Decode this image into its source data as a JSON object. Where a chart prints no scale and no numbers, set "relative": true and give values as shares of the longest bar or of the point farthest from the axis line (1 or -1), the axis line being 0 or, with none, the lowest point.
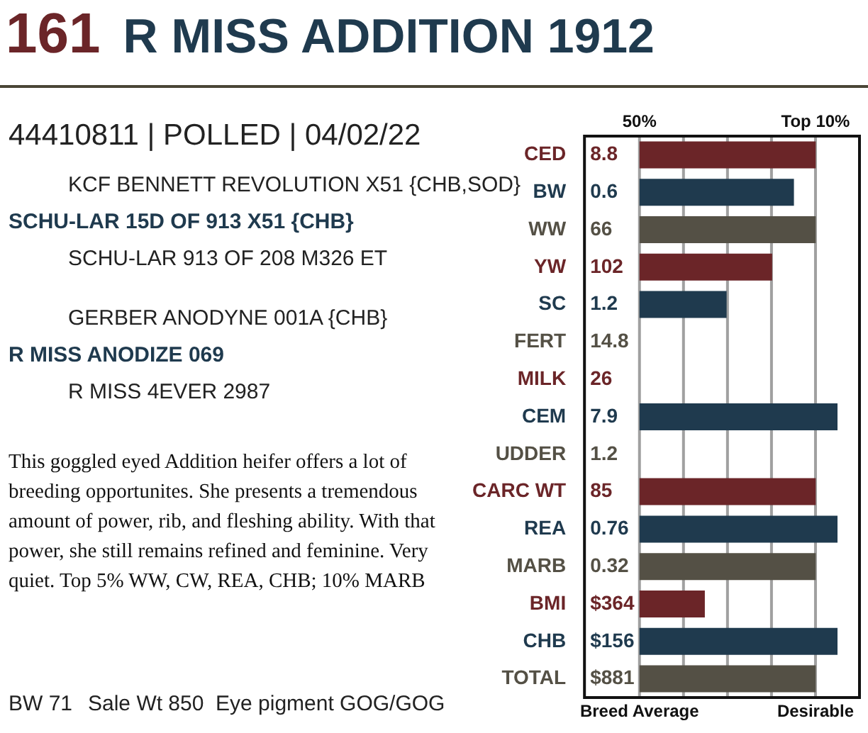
{
  "chart_data": {
    "type": "bar",
    "orientation": "horizontal",
    "relative": true,
    "title": "161",
    "subtitle": "R MISS ADDITION 1912",
    "categories": [
      "CED",
      "BW",
      "WW",
      "YW",
      "SC",
      "FERT",
      "MILK",
      "CEM",
      "UDDER",
      "CARC WT",
      "REA",
      "MARB",
      "BMI",
      "CHB",
      "TOTAL"
    ],
    "values": [
      0.89,
      0.78,
      0.89,
      0.67,
      0.44,
      null,
      null,
      1,
      null,
      0.89,
      1,
      0.89,
      0.33,
      1,
      0.89
    ],
    "colors": [
      "#6b2528",
      "#1f3a4e",
      "#545045",
      "#6b2528",
      "#1f3a4e",
      "#545045",
      "#6b2528",
      "#1f3a4e",
      "#545045",
      "#6b2528",
      "#1f3a4e",
      "#545045",
      "#6b2528",
      "#1f3a4e",
      "#545045"
    ],
    "grid": "x",
    "legend": false,
    "annotations": [
      "44410811 | POLLED | 04/02/22",
      "KCF BENNETT REVOLUTION X51 {CHB,SOD}",
      "SCHU-LAR 15D OF 913 X51 {CHB}",
      "SCHU-LAR 913 OF 208 M326 ET",
      "GERBER ANODYNE 001A {CHB}",
      "R MISS ANODIZE 069",
      "R MISS 4EVER 2987",
      "This goggled eyed Addition heifer offers a lot of breeding opportunites. She presents a tremendous amount of power, rib, and fleshing ability. With that power, she still remains refined and feminine. Very quiet. Top 5% WW, CW, REA, CHB; 10% MARB",
      "BW 71",
      "Sale Wt 850",
      "Eye pigment GOG/GOG",
      "50%",
      "Top 10%",
      "Breed Average",
      "Desirable",
      "8.8",
      "0.6",
      "66",
      "102",
      "1.2",
      "14.8",
      "26",
      "7.9",
      "1.2",
      "85",
      "0.76",
      "0.32",
      "$364",
      "$156",
      "$881"
    ]
  }
}
